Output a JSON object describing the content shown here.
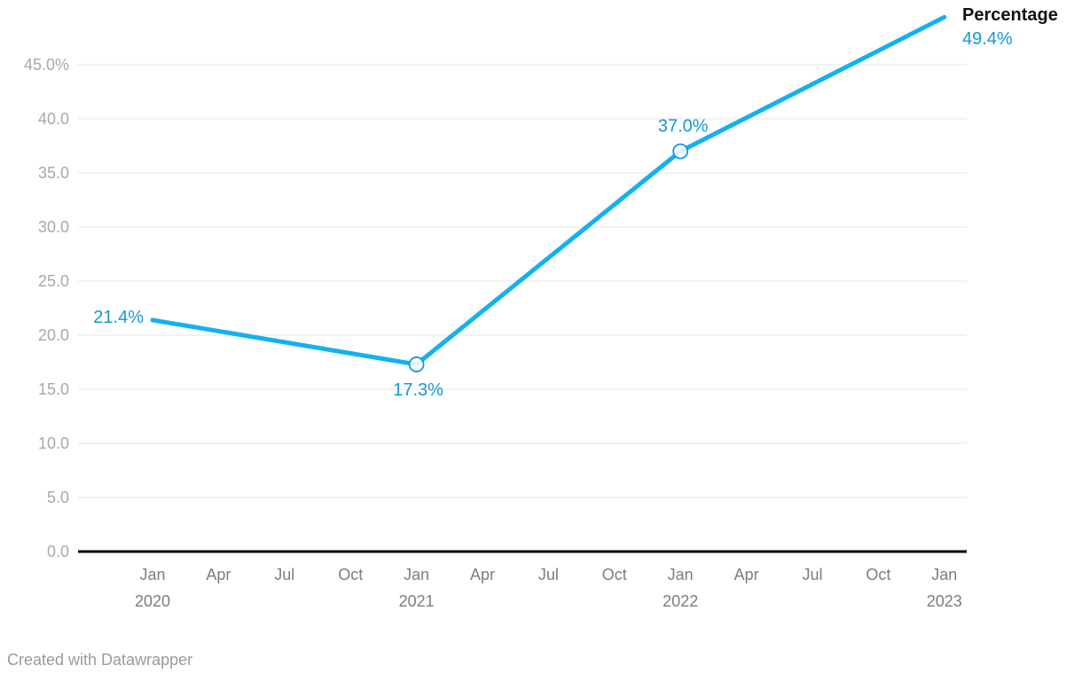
{
  "chart_data": {
    "type": "line",
    "title": "",
    "series": [
      {
        "name": "Percentage",
        "x": [
          "Jan 2020",
          "Jan 2021",
          "Jan 2022",
          "Jan 2023"
        ],
        "x_quarter_index": [
          0,
          4,
          8,
          12
        ],
        "values": [
          21.4,
          17.3,
          37.0,
          49.4
        ],
        "point_labels": [
          "21.4%",
          "17.3%",
          "37.0%",
          "49.4%"
        ],
        "point_label_positions": [
          "left",
          "below",
          "above",
          "legend"
        ],
        "point_markers": [
          false,
          true,
          true,
          false
        ]
      }
    ],
    "x_tick_labels": [
      {
        "month": "Jan",
        "year": "2020"
      },
      {
        "month": "Apr"
      },
      {
        "month": "Jul"
      },
      {
        "month": "Oct"
      },
      {
        "month": "Jan",
        "year": "2021"
      },
      {
        "month": "Apr"
      },
      {
        "month": "Jul"
      },
      {
        "month": "Oct"
      },
      {
        "month": "Jan",
        "year": "2022"
      },
      {
        "month": "Apr"
      },
      {
        "month": "Jul"
      },
      {
        "month": "Oct"
      },
      {
        "month": "Jan",
        "year": "2023"
      }
    ],
    "y_tick_values": [
      0,
      5,
      10,
      15,
      20,
      25,
      30,
      35,
      40,
      45
    ],
    "y_tick_labels": [
      "0.0",
      "5.0",
      "10.0",
      "15.0",
      "20.0",
      "25.0",
      "30.0",
      "35.0",
      "40.0",
      "45.0%"
    ],
    "ylim": [
      0,
      50
    ],
    "grid": "horizontal",
    "legend_position": "end-of-line"
  },
  "colors": {
    "line": "#12b1f0",
    "value_labels": "#1499d8",
    "grid": "#e4e4e4",
    "axis_baseline": "#000000",
    "y_tick_text": "#a8a8a8",
    "x_tick_text": "#7d7d7d",
    "marker_fill": "#ffffff",
    "legend_name_text": "#111111"
  },
  "footer": {
    "text": "Created with Datawrapper"
  }
}
